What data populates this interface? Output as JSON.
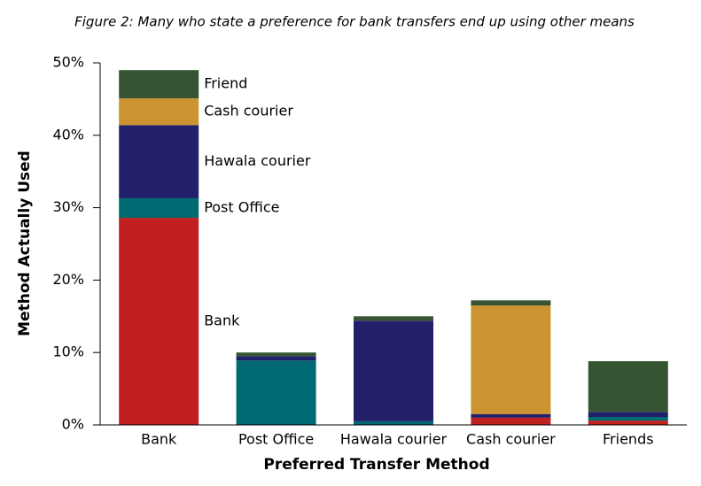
{
  "chart_data": {
    "type": "stacked_bar",
    "title": "Figure 2: Many who state a preference for bank transfers end up using other means",
    "x_label": "Preferred Transfer Method",
    "y_label": "Method Actually Used",
    "categories": [
      "Bank",
      "Post Office",
      "Hawala courier",
      "Cash courier",
      "Friends"
    ],
    "series": [
      {
        "name": "Bank",
        "color": "#c0201f",
        "values": [
          28.6,
          0,
          0,
          1.0,
          0.6
        ]
      },
      {
        "name": "Post Office",
        "color": "#006a72",
        "values": [
          2.7,
          8.9,
          0.5,
          0,
          0.5
        ]
      },
      {
        "name": "Hawala courier",
        "color": "#23206b",
        "values": [
          10.1,
          0.6,
          13.9,
          0.5,
          0.7
        ]
      },
      {
        "name": "Cash courier",
        "color": "#cc9331",
        "values": [
          3.7,
          0,
          0,
          15.0,
          0
        ]
      },
      {
        "name": "Friend",
        "color": "#355532",
        "values": [
          3.9,
          0.5,
          0.6,
          0.7,
          7.0
        ]
      }
    ],
    "ylim": [
      0,
      50
    ],
    "yticks": [
      {
        "value": 0,
        "label": "0%"
      },
      {
        "value": 10,
        "label": "10%"
      },
      {
        "value": 20,
        "label": "20%"
      },
      {
        "value": 30,
        "label": "30%"
      },
      {
        "value": 40,
        "label": "40%"
      },
      {
        "value": 50,
        "label": "50%"
      }
    ]
  }
}
